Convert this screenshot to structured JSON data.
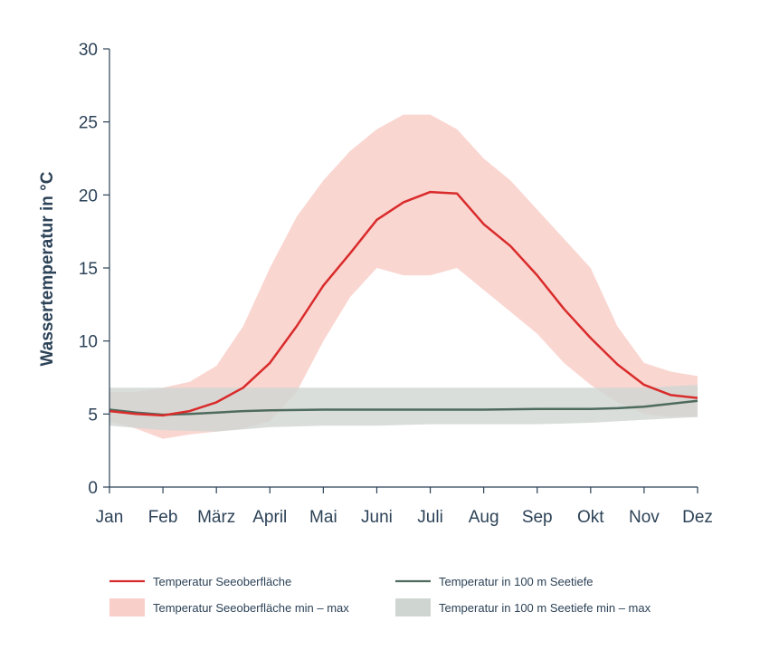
{
  "chart_data": {
    "type": "line",
    "title": "",
    "xlabel": "",
    "ylabel": "Wassertemperatur in °C",
    "x_tick_labels": [
      "Jan",
      "Feb",
      "März",
      "April",
      "Mai",
      "Juni",
      "Juli",
      "Aug",
      "Sep",
      "Okt",
      "Nov",
      "Dez"
    ],
    "y_ticks": [
      0,
      5,
      10,
      15,
      20,
      25,
      30
    ],
    "ylim": [
      0,
      30
    ],
    "xlim": [
      0,
      11
    ],
    "grid": false,
    "legend_position": "bottom",
    "colors": {
      "surface_line": "#d92b2b",
      "surface_band": "#f9cfc9",
      "deep_line": "#4e6b5e",
      "deep_band": "#cfd6d2",
      "axis": "#2c4257"
    },
    "series": [
      {
        "name": "Temperatur Seeoberfläche",
        "kind": "line",
        "x": [
          0,
          0.5,
          1,
          1.5,
          2,
          2.5,
          3,
          3.5,
          4,
          4.5,
          5,
          5.5,
          6,
          6.5,
          7,
          7.5,
          8,
          8.5,
          9,
          9.5,
          10,
          10.5,
          11
        ],
        "y": [
          5.2,
          5.0,
          4.9,
          5.2,
          5.8,
          6.8,
          8.5,
          11.0,
          13.8,
          16.0,
          18.3,
          19.5,
          20.2,
          20.1,
          18.0,
          16.5,
          14.5,
          12.2,
          10.2,
          8.4,
          7.0,
          6.3,
          6.1
        ]
      },
      {
        "name": "Temperatur in 100 m Seetiefe",
        "kind": "line",
        "x": [
          0,
          0.5,
          1,
          1.5,
          2,
          2.5,
          3,
          4,
          5,
          6,
          7,
          8,
          9,
          9.5,
          10,
          10.5,
          11
        ],
        "y": [
          5.3,
          5.1,
          4.95,
          5.0,
          5.1,
          5.2,
          5.25,
          5.3,
          5.3,
          5.3,
          5.3,
          5.35,
          5.35,
          5.4,
          5.5,
          5.7,
          5.9
        ]
      },
      {
        "name": "Temperatur Seeoberfläche min – max",
        "kind": "band",
        "x": [
          0,
          0.5,
          1,
          1.5,
          2,
          2.5,
          3,
          3.5,
          4,
          4.5,
          5,
          5.5,
          6,
          6.5,
          7,
          7.5,
          8,
          8.5,
          9,
          9.5,
          10,
          10.5,
          11
        ],
        "min": [
          4.5,
          4.0,
          3.3,
          3.6,
          3.8,
          4.0,
          4.5,
          6.5,
          10.0,
          13.0,
          15.0,
          14.5,
          14.5,
          15.0,
          13.5,
          12.0,
          10.5,
          8.5,
          7.0,
          5.8,
          5.0,
          4.8,
          4.8
        ],
        "max": [
          6.5,
          6.5,
          6.8,
          7.2,
          8.3,
          11.0,
          15.0,
          18.5,
          21.0,
          23.0,
          24.5,
          25.5,
          25.5,
          24.5,
          22.5,
          21.0,
          19.0,
          17.0,
          15.0,
          11.0,
          8.5,
          7.9,
          7.6
        ]
      },
      {
        "name": "Temperatur in 100 m Seetiefe min – max",
        "kind": "band",
        "x": [
          0,
          1,
          2,
          3,
          4,
          5,
          6,
          7,
          8,
          9,
          10,
          11
        ],
        "min": [
          4.2,
          3.9,
          3.8,
          4.1,
          4.2,
          4.2,
          4.3,
          4.3,
          4.3,
          4.4,
          4.6,
          4.8
        ],
        "max": [
          6.8,
          6.8,
          6.8,
          6.8,
          6.8,
          6.8,
          6.8,
          6.8,
          6.8,
          6.8,
          6.8,
          7.0
        ]
      }
    ]
  }
}
